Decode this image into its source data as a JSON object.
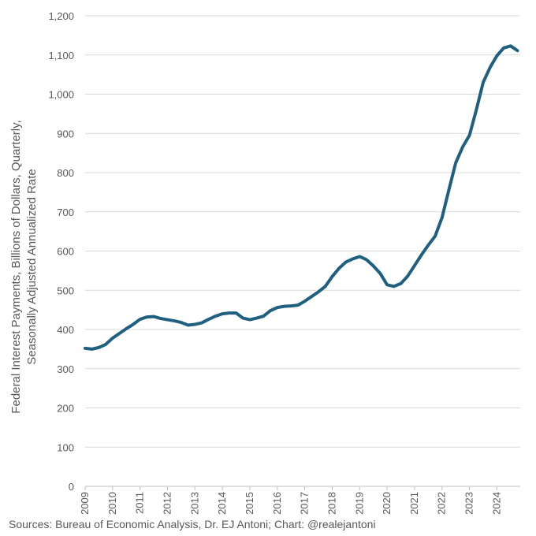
{
  "chart_data": {
    "type": "line",
    "ylabel_lines": [
      "Federal Interest Payments, Billions of Dollars, Quarterly,",
      "Seasonally Adjusted Annualized Rate"
    ],
    "ylim": [
      0,
      1200
    ],
    "ytick_step": 100,
    "ytick_labels": [
      "0",
      "100",
      "200",
      "300",
      "400",
      "500",
      "600",
      "700",
      "800",
      "900",
      "1,000",
      "1,100",
      "1,200"
    ],
    "xlim": [
      2009.0,
      2024.85
    ],
    "xtick_labels": [
      "2009",
      "2010",
      "2011",
      "2012",
      "2013",
      "2014",
      "2015",
      "2016",
      "2017",
      "2018",
      "2019",
      "2020",
      "2021",
      "2022",
      "2023",
      "2024"
    ],
    "grid": true,
    "line_color": "#1f5f7f",
    "series": [
      {
        "x": [
          2009.0,
          2009.25,
          2009.5,
          2009.75,
          2010.0,
          2010.25,
          2010.5,
          2010.75,
          2011.0,
          2011.25,
          2011.5,
          2011.75,
          2012.0,
          2012.25,
          2012.5,
          2012.75,
          2013.0,
          2013.25,
          2013.5,
          2013.75,
          2014.0,
          2014.25,
          2014.5,
          2014.75,
          2015.0,
          2015.25,
          2015.5,
          2015.75,
          2016.0,
          2016.25,
          2016.5,
          2016.75,
          2017.0,
          2017.25,
          2017.5,
          2017.75,
          2018.0,
          2018.25,
          2018.5,
          2018.75,
          2019.0,
          2019.25,
          2019.5,
          2019.75,
          2020.0,
          2020.25,
          2020.5,
          2020.75,
          2021.0,
          2021.25,
          2021.5,
          2021.75,
          2022.0,
          2022.25,
          2022.5,
          2022.75,
          2023.0,
          2023.25,
          2023.5,
          2023.75,
          2024.0,
          2024.25,
          2024.5,
          2024.75
        ],
        "values": [
          352,
          350,
          354,
          362,
          378,
          390,
          402,
          413,
          426,
          432,
          433,
          428,
          425,
          422,
          418,
          411,
          413,
          417,
          426,
          434,
          440,
          442,
          442,
          429,
          425,
          429,
          434,
          448,
          456,
          459,
          460,
          462,
          472,
          484,
          496,
          510,
          535,
          556,
          572,
          580,
          586,
          578,
          562,
          543,
          514,
          510,
          517,
          536,
          563,
          590,
          615,
          638,
          685,
          756,
          825,
          865,
          895,
          960,
          1030,
          1068,
          1098,
          1118,
          1123,
          1111
        ]
      }
    ]
  },
  "source_note": "Sources: Bureau of Economic Analysis, Dr. EJ Antoni; Chart: @realejantoni"
}
